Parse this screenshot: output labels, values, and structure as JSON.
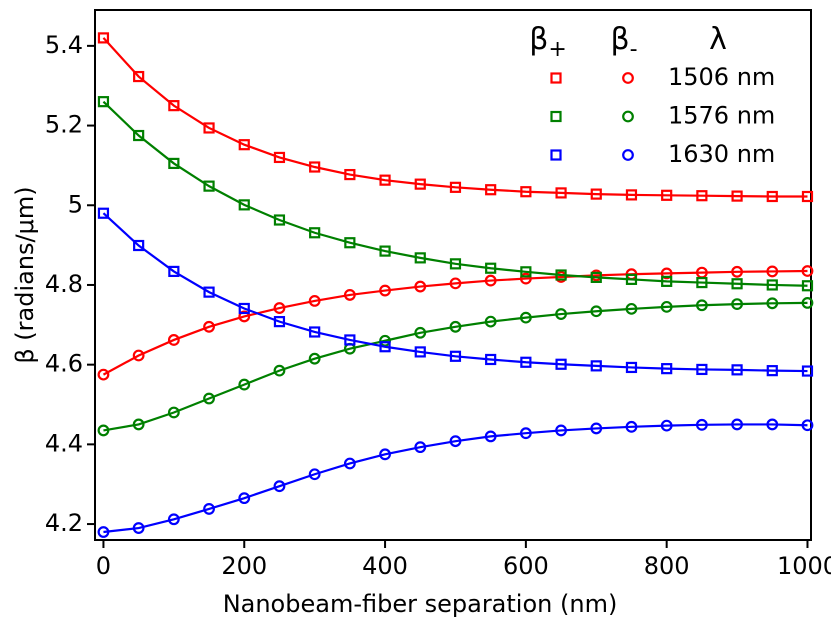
{
  "chart_data": {
    "type": "scatter-fit",
    "x_label": "Nanobeam-fiber separation (nm)",
    "y_label": "β (radians/μm)",
    "xlim": [
      -12,
      1005
    ],
    "ylim": [
      4.16,
      5.49
    ],
    "xticks": [
      0,
      200,
      400,
      600,
      800,
      1000
    ],
    "yticks": [
      4.2,
      4.4,
      4.6,
      4.8,
      5.0,
      5.2,
      5.4
    ],
    "legend_header": [
      {
        "symbol": "β",
        "sub": "+"
      },
      {
        "symbol": "β",
        "sub": "-"
      },
      {
        "symbol": "λ"
      }
    ],
    "x": [
      0,
      50,
      100,
      150,
      200,
      250,
      300,
      350,
      400,
      450,
      500,
      550,
      600,
      650,
      700,
      750,
      800,
      850,
      900,
      950,
      1000
    ],
    "series": [
      {
        "name": "1506 nm",
        "color": "#ff0000",
        "beta_plus": [
          5.42,
          5.323,
          5.25,
          5.194,
          5.152,
          5.12,
          5.096,
          5.077,
          5.063,
          5.053,
          5.045,
          5.039,
          5.034,
          5.031,
          5.028,
          5.026,
          5.025,
          5.024,
          5.023,
          5.022,
          5.022
        ],
        "beta_minus": [
          4.575,
          4.623,
          4.662,
          4.695,
          4.721,
          4.742,
          4.76,
          4.775,
          4.786,
          4.796,
          4.804,
          4.811,
          4.816,
          4.82,
          4.824,
          4.827,
          4.829,
          4.831,
          4.833,
          4.834,
          4.835
        ]
      },
      {
        "name": "1576 nm",
        "color": "#008000",
        "beta_plus": [
          5.26,
          5.175,
          5.105,
          5.048,
          5.001,
          4.963,
          4.931,
          4.906,
          4.885,
          4.868,
          4.853,
          4.842,
          4.833,
          4.825,
          4.819,
          4.814,
          4.809,
          4.806,
          4.803,
          4.8,
          4.798
        ],
        "beta_minus": [
          4.435,
          4.45,
          4.48,
          4.515,
          4.55,
          4.585,
          4.615,
          4.64,
          4.66,
          4.68,
          4.695,
          4.708,
          4.718,
          4.727,
          4.734,
          4.74,
          4.745,
          4.749,
          4.752,
          4.754,
          4.755
        ]
      },
      {
        "name": "1630 nm",
        "color": "#0000ff",
        "beta_plus": [
          4.98,
          4.899,
          4.834,
          4.782,
          4.741,
          4.708,
          4.682,
          4.662,
          4.645,
          4.632,
          4.621,
          4.613,
          4.606,
          4.601,
          4.597,
          4.593,
          4.59,
          4.588,
          4.587,
          4.585,
          4.584
        ],
        "beta_minus": [
          4.18,
          4.19,
          4.212,
          4.238,
          4.265,
          4.295,
          4.325,
          4.352,
          4.375,
          4.393,
          4.408,
          4.42,
          4.428,
          4.435,
          4.44,
          4.444,
          4.447,
          4.449,
          4.45,
          4.45,
          4.448
        ]
      }
    ]
  }
}
